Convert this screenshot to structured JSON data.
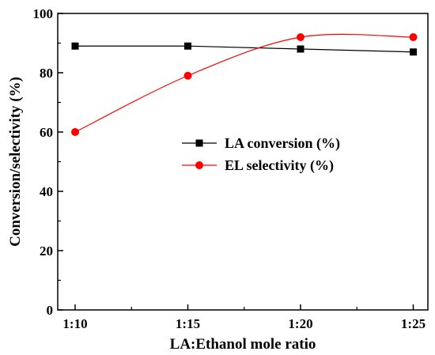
{
  "chart_data": {
    "type": "line",
    "title": "",
    "xlabel": "LA:Ethanol mole ratio",
    "ylabel": "Conversion/selectivity (%)",
    "categories": [
      "1:10",
      "1:15",
      "1:20",
      "1:25"
    ],
    "ylim": [
      0,
      100
    ],
    "yticks": [
      0,
      20,
      40,
      60,
      80,
      100
    ],
    "grid": false,
    "legend_position": "center-right",
    "series": [
      {
        "name": "LA conversion (%)",
        "values": [
          89,
          89,
          88,
          87
        ],
        "color": "#000000",
        "marker": "square",
        "smooth": false
      },
      {
        "name": "EL selectivity (%)",
        "values": [
          60,
          79,
          92,
          92
        ],
        "color": "#ff0000",
        "marker": "circle",
        "smooth": true
      }
    ]
  }
}
